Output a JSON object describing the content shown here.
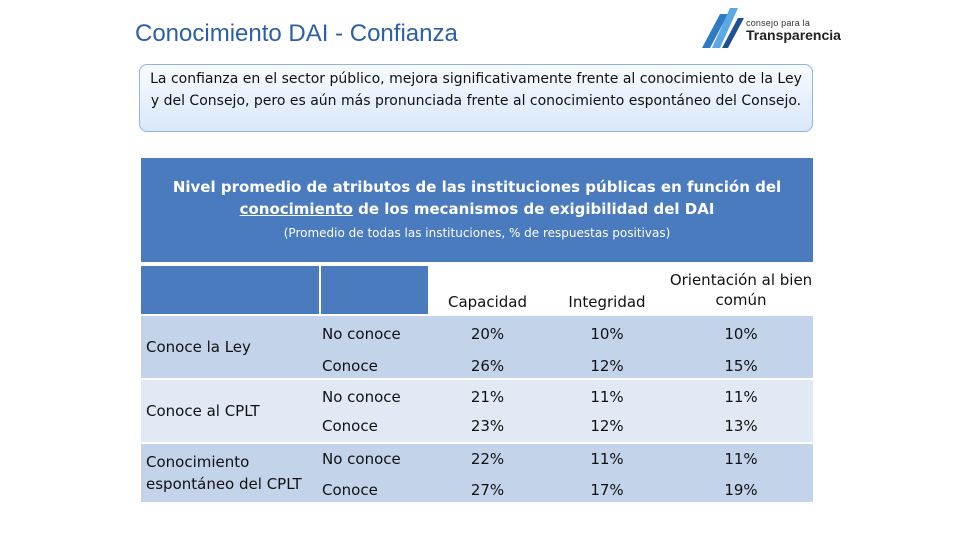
{
  "header": {
    "title": "Conocimiento DAI - Confianza",
    "logo_small": "consejo para la",
    "logo_big": "Transparencia"
  },
  "callout": {
    "text": "La confianza en el sector público, mejora significativamente frente al conocimiento de la Ley y del Consejo, pero es aún más pronunciada frente al conocimiento espontáneo del Consejo."
  },
  "banner": {
    "title_part1": "Nivel promedio de atributos de las instituciones públicas en función del",
    "title_underlined": "conocimiento",
    "title_part2": " de los mecanismos de exigibilidad del DAI",
    "subtitle": "(Promedio de todas las instituciones, % de respuestas positivas)"
  },
  "table": {
    "columns": [
      "Capacidad",
      "Integridad",
      "Orientación al bien común"
    ],
    "groups": [
      {
        "label": "Conoce la Ley",
        "rows": [
          {
            "sub": "No conoce",
            "values": [
              "20%",
              "10%",
              "10%"
            ]
          },
          {
            "sub": "Conoce",
            "values": [
              "26%",
              "12%",
              "15%"
            ]
          }
        ]
      },
      {
        "label": "Conoce al CPLT",
        "rows": [
          {
            "sub": "No conoce",
            "values": [
              "21%",
              "11%",
              "11%"
            ]
          },
          {
            "sub": "Conoce",
            "values": [
              "23%",
              "12%",
              "13%"
            ]
          }
        ]
      },
      {
        "label": "Conocimiento espontáneo del CPLT",
        "rows": [
          {
            "sub": "No conoce",
            "values": [
              "22%",
              "11%",
              "11%"
            ]
          },
          {
            "sub": "Conoce",
            "values": [
              "27%",
              "17%",
              "19%"
            ]
          }
        ]
      }
    ]
  },
  "colors": {
    "title": "#2b5fa8",
    "header_blue": "#4a7bbf",
    "row_dark": "#c3d3ea",
    "row_light": "#e1e9f5"
  }
}
